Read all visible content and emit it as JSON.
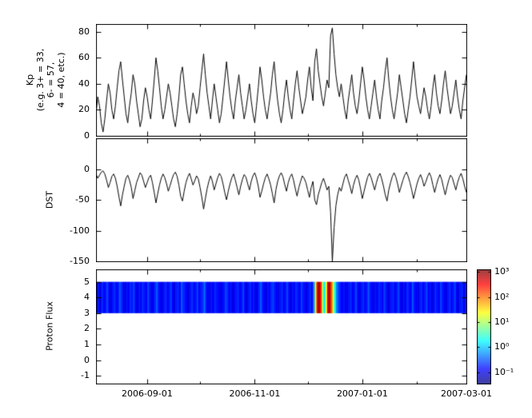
{
  "figure": {
    "background_color": "#ffffff",
    "axis_color": "#000000"
  },
  "x_axis": {
    "tick_labels": [
      "2006-09-01",
      "2006-11-01",
      "2007-01-01",
      "2007-03-01"
    ],
    "tick_days": [
      29,
      90,
      151,
      210
    ],
    "minor_tick_days": [
      59,
      120,
      182
    ],
    "range_days": [
      0,
      210
    ],
    "sample_interval_days": 1
  },
  "chart_data": [
    {
      "type": "line",
      "ylabel": "Kp (e.g. 3+ = 33, 6- = 57, 4 = 40, etc.)",
      "ylabel_lines": [
        "Kp",
        "(e.g. 3+ = 33,",
        "6- = 57,",
        "4 = 40, etc.)"
      ],
      "ylim": [
        0,
        86
      ],
      "yticks": [
        0,
        20,
        40,
        60,
        80
      ],
      "line_color": "#000000",
      "values": [
        17,
        30,
        23,
        10,
        3,
        13,
        27,
        40,
        33,
        20,
        13,
        23,
        37,
        50,
        57,
        43,
        30,
        17,
        10,
        23,
        33,
        47,
        40,
        27,
        17,
        7,
        13,
        27,
        37,
        30,
        20,
        13,
        27,
        43,
        60,
        50,
        37,
        23,
        13,
        20,
        30,
        40,
        33,
        23,
        13,
        7,
        17,
        30,
        47,
        53,
        40,
        27,
        17,
        10,
        23,
        33,
        27,
        17,
        23,
        37,
        50,
        63,
        47,
        33,
        23,
        13,
        27,
        40,
        30,
        20,
        10,
        17,
        30,
        43,
        57,
        43,
        30,
        20,
        13,
        27,
        37,
        47,
        33,
        23,
        13,
        20,
        30,
        40,
        27,
        17,
        10,
        23,
        37,
        53,
        43,
        30,
        20,
        13,
        23,
        33,
        47,
        57,
        40,
        27,
        17,
        10,
        20,
        33,
        43,
        30,
        20,
        13,
        27,
        40,
        50,
        37,
        27,
        17,
        23,
        30,
        43,
        53,
        37,
        27,
        57,
        67,
        50,
        40,
        30,
        23,
        33,
        43,
        37,
        77,
        83,
        63,
        47,
        37,
        30,
        40,
        30,
        20,
        13,
        27,
        37,
        47,
        33,
        23,
        17,
        27,
        40,
        53,
        43,
        30,
        20,
        13,
        23,
        33,
        43,
        30,
        20,
        13,
        27,
        37,
        50,
        60,
        43,
        30,
        20,
        13,
        23,
        33,
        47,
        37,
        27,
        17,
        10,
        20,
        30,
        43,
        57,
        43,
        30,
        23,
        17,
        27,
        37,
        30,
        20,
        13,
        23,
        37,
        47,
        33,
        23,
        17,
        27,
        40,
        50,
        37,
        27,
        17,
        23,
        33,
        43,
        30,
        20,
        13,
        27,
        37,
        47
      ]
    },
    {
      "type": "line",
      "ylabel": "DST",
      "ylim": [
        -150,
        50
      ],
      "yticks": [
        0,
        -50,
        -100,
        -150
      ],
      "line_color": "#000000",
      "values": [
        -8,
        -15,
        -10,
        -5,
        -3,
        -8,
        -18,
        -30,
        -22,
        -12,
        -8,
        -15,
        -28,
        -45,
        -60,
        -42,
        -28,
        -15,
        -10,
        -18,
        -30,
        -48,
        -35,
        -22,
        -14,
        -6,
        -10,
        -20,
        -30,
        -22,
        -14,
        -10,
        -22,
        -38,
        -55,
        -40,
        -26,
        -15,
        -8,
        -14,
        -24,
        -36,
        -27,
        -17,
        -9,
        -5,
        -12,
        -26,
        -44,
        -52,
        -36,
        -22,
        -13,
        -7,
        -16,
        -26,
        -19,
        -11,
        -16,
        -30,
        -46,
        -65,
        -48,
        -32,
        -20,
        -11,
        -20,
        -34,
        -24,
        -14,
        -7,
        -12,
        -24,
        -38,
        -50,
        -36,
        -24,
        -14,
        -8,
        -18,
        -30,
        -42,
        -28,
        -17,
        -9,
        -13,
        -24,
        -34,
        -20,
        -11,
        -6,
        -15,
        -28,
        -46,
        -36,
        -24,
        -14,
        -8,
        -16,
        -26,
        -40,
        -55,
        -34,
        -20,
        -11,
        -6,
        -13,
        -25,
        -36,
        -22,
        -13,
        -8,
        -18,
        -32,
        -44,
        -30,
        -20,
        -11,
        -15,
        -22,
        -34,
        -46,
        -30,
        -20,
        -50,
        -58,
        -42,
        -32,
        -22,
        -15,
        -24,
        -34,
        -28,
        -70,
        -150,
        -95,
        -60,
        -42,
        -30,
        -36,
        -24,
        -13,
        -8,
        -18,
        -28,
        -40,
        -26,
        -16,
        -10,
        -18,
        -32,
        -48,
        -36,
        -24,
        -13,
        -7,
        -14,
        -24,
        -34,
        -22,
        -12,
        -7,
        -16,
        -28,
        -42,
        -52,
        -34,
        -22,
        -12,
        -6,
        -13,
        -24,
        -38,
        -28,
        -18,
        -10,
        -5,
        -12,
        -22,
        -34,
        -48,
        -36,
        -24,
        -15,
        -9,
        -17,
        -28,
        -21,
        -12,
        -6,
        -13,
        -26,
        -38,
        -26,
        -16,
        -9,
        -17,
        -30,
        -42,
        -29,
        -18,
        -10,
        -14,
        -24,
        -34,
        -22,
        -13,
        -7,
        -16,
        -28,
        -38
      ]
    },
    {
      "type": "heatmap",
      "ylabel": "Proton Flux",
      "ylim": [
        -1.5,
        5.8
      ],
      "yticks": [
        5,
        4,
        3,
        2,
        1,
        0,
        -1
      ],
      "band_y_range": [
        3,
        5
      ],
      "colormap": "jet",
      "values_log10_flux": [
        -0.9,
        -0.8,
        -1,
        -0.7,
        -0.9,
        -0.8,
        -0.6,
        -0.9,
        -1,
        -0.8,
        -0.7,
        -0.9,
        -0.8,
        -0.5,
        -0.7,
        -0.9,
        -1,
        -0.8,
        -0.9,
        -0.7,
        -0.8,
        -0.6,
        -0.9,
        -1,
        -0.8,
        -0.9,
        -0.7,
        -0.8,
        -0.9,
        -0.6,
        -0.8,
        -1,
        -0.9,
        -0.7,
        -0.5,
        -0.8,
        -0.9,
        -1,
        -0.8,
        -0.7,
        -0.9,
        -0.8,
        -0.6,
        -0.9,
        -1,
        -0.8,
        -0.7,
        -0.9,
        -0.5,
        -0.7,
        -0.8,
        -0.9,
        -1,
        -0.8,
        -0.7,
        -0.9,
        -0.8,
        -0.6,
        -0.9,
        -0.8,
        -0.7,
        -0.4,
        -0.8,
        -0.9,
        -1,
        -0.8,
        -0.9,
        -0.7,
        -0.8,
        -0.9,
        -1,
        -0.9,
        -0.8,
        -0.6,
        -0.7,
        -0.9,
        -0.8,
        -1,
        -0.9,
        -0.8,
        -0.7,
        -0.9,
        -0.8,
        -0.6,
        -0.9,
        -1,
        -0.8,
        -0.7,
        -0.9,
        -0.8,
        -1,
        -0.9,
        -0.7,
        -0.5,
        -0.8,
        -0.9,
        -1,
        -0.8,
        -0.9,
        -0.7,
        -0.6,
        -0.8,
        -0.9,
        -1,
        -0.8,
        -0.7,
        -0.9,
        -0.8,
        -0.6,
        -0.9,
        -1,
        -0.8,
        -0.9,
        -0.7,
        -0.8,
        -0.9,
        -0.6,
        -0.8,
        -0.9,
        -1,
        -0.8,
        -0.7,
        -0.9,
        -0.3,
        1.2,
        2.6,
        3,
        2.4,
        1,
        0.2,
        1.4,
        2.8,
        2.9,
        2.2,
        1.2,
        0.3,
        -0.3,
        -0.6,
        -0.8,
        -0.9,
        -0.8,
        -0.9,
        -1,
        -0.8,
        -0.7,
        -0.9,
        -0.8,
        -0.6,
        -0.9,
        -1,
        -0.8,
        -0.7,
        -0.9,
        -0.8,
        -0.5,
        -0.8,
        -0.9,
        -1,
        -0.8,
        -0.9,
        -0.7,
        -0.8,
        -0.9,
        -0.6,
        -0.8,
        -1,
        -0.9,
        -0.8,
        -0.7,
        -0.9,
        -0.8,
        -0.6,
        -0.9,
        -1,
        -0.8,
        -0.9,
        -0.7,
        -0.8,
        -0.9,
        -0.5,
        -0.8,
        -0.9,
        -1,
        -0.8,
        -0.7,
        -0.9,
        -0.8,
        -0.6,
        -0.9,
        -0.8,
        -1,
        -0.9,
        -0.7,
        -0.8,
        -0.9,
        -0.6,
        -0.8,
        -0.9,
        -1,
        -0.8,
        -0.7,
        -0.9,
        -0.8,
        -0.6,
        -0.9,
        -1,
        -0.8,
        -0.7,
        -0.9,
        -0.8,
        -0.9
      ],
      "colorbar": {
        "scale": "log",
        "range_log10": [
          -1.45,
          3.1
        ],
        "ticks_log10": [
          3,
          2,
          1,
          0,
          -1
        ],
        "tick_labels": [
          "10³",
          "10²",
          "10¹",
          "10⁰",
          "10⁻¹"
        ],
        "colormap": "jet"
      }
    }
  ]
}
